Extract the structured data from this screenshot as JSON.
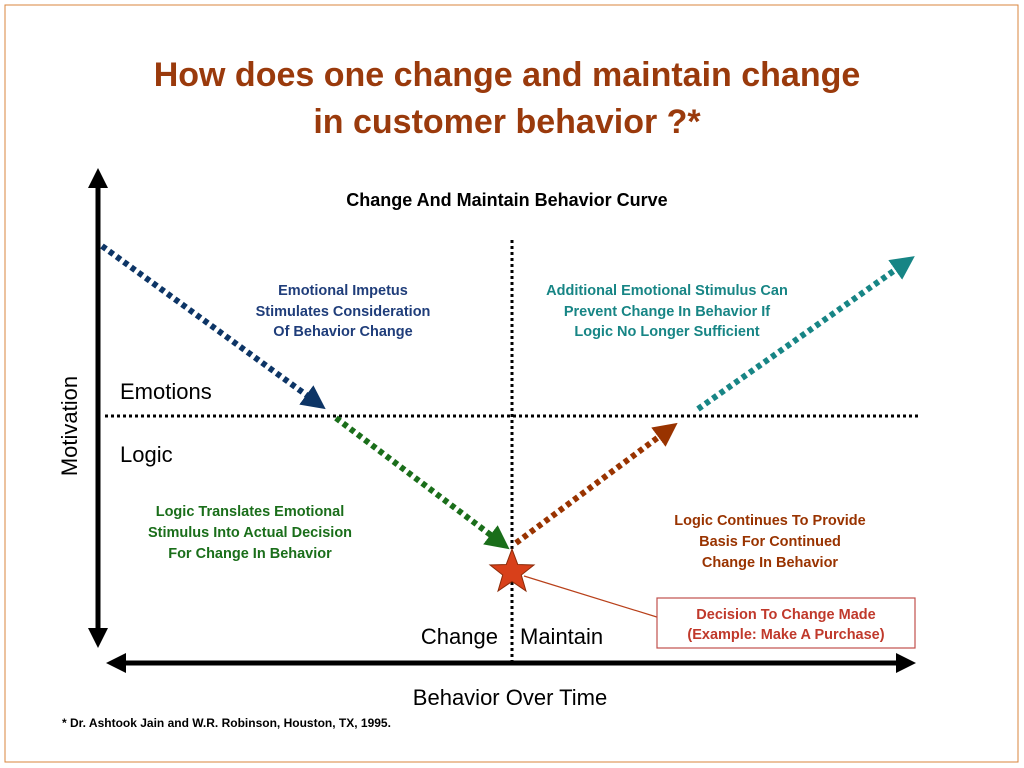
{
  "header": {
    "title_lines": [
      "How does one change and maintain change",
      "in customer behavior ?*"
    ],
    "subtitle": "Change And Maintain Behavior Curve"
  },
  "axes": {
    "y_label": "Motivation",
    "x_label": "Behavior Over Time"
  },
  "zones": {
    "upper": "Emotions",
    "lower": "Logic",
    "left": "Change",
    "right": "Maintain"
  },
  "annotations": {
    "emotional_impetus": [
      "Emotional Impetus",
      "Stimulates Consideration",
      "Of Behavior Change"
    ],
    "additional_stimulus": [
      "Additional Emotional Stimulus Can",
      "Prevent Change In Behavior If",
      "Logic No Longer Sufficient"
    ],
    "logic_translates": [
      "Logic Translates Emotional",
      "Stimulus Into Actual Decision",
      "For Change In Behavior"
    ],
    "logic_continues": [
      "Logic Continues To Provide",
      "Basis For Continued",
      "Change In Behavior"
    ]
  },
  "callout": [
    "Decision To Change Made",
    "(Example:  Make A Purchase)"
  ],
  "footnote": "* Dr. Ashtook Jain and W.R. Robinson, Houston, TX, 1995."
}
